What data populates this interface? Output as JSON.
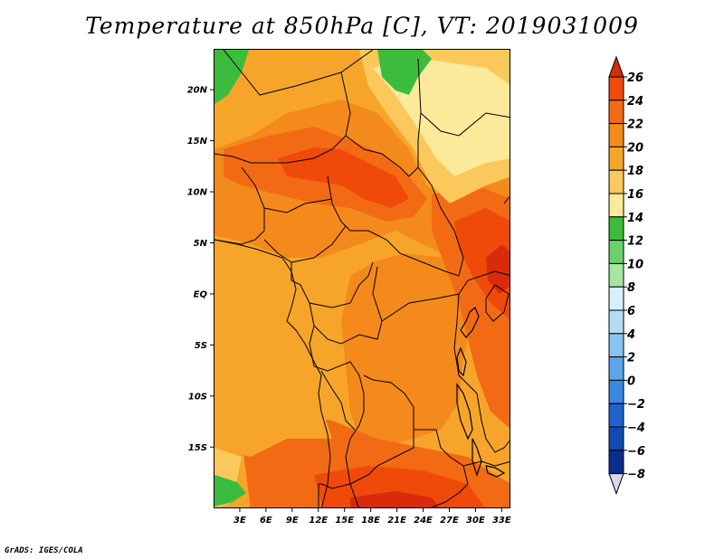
{
  "title": "Temperature at 850hPa [C], VT: 2019031009",
  "credit": "GrADS: IGES/COLA",
  "map": {
    "lat_range": [
      -21,
      24
    ],
    "lon_range": [
      0,
      34
    ],
    "lat_ticks": [
      {
        "value": 20,
        "label": "20N"
      },
      {
        "value": 15,
        "label": "15N"
      },
      {
        "value": 10,
        "label": "10N"
      },
      {
        "value": 5,
        "label": "5N"
      },
      {
        "value": 0,
        "label": "EQ"
      },
      {
        "value": -5,
        "label": "5S"
      },
      {
        "value": -10,
        "label": "10S"
      },
      {
        "value": -15,
        "label": "15S"
      }
    ],
    "lon_ticks": [
      {
        "value": 3,
        "label": "3E"
      },
      {
        "value": 6,
        "label": "6E"
      },
      {
        "value": 9,
        "label": "9E"
      },
      {
        "value": 12,
        "label": "12E"
      },
      {
        "value": 15,
        "label": "15E"
      },
      {
        "value": 18,
        "label": "18E"
      },
      {
        "value": 21,
        "label": "21E"
      },
      {
        "value": 24,
        "label": "24E"
      },
      {
        "value": 27,
        "label": "27E"
      },
      {
        "value": 30,
        "label": "30E"
      },
      {
        "value": 33,
        "label": "33E"
      }
    ]
  },
  "colorbar": {
    "levels": [
      26,
      24,
      22,
      20,
      18,
      16,
      14,
      12,
      10,
      8,
      6,
      4,
      2,
      0,
      -2,
      -4,
      -6,
      -8
    ],
    "labels": [
      "26",
      "24",
      "22",
      "20",
      "18",
      "16",
      "14",
      "12",
      "10",
      "8",
      "6",
      "4",
      "2",
      "0",
      "−2",
      "−4",
      "−6",
      "−8"
    ],
    "colors": [
      "#d92b0b",
      "#f04a0b",
      "#f26b14",
      "#f48a1b",
      "#f6a52a",
      "#fbc85c",
      "#fde99a",
      "#3cbc3c",
      "#6ad26a",
      "#a8e6a0",
      "#d6f1f9",
      "#b4dcf5",
      "#89c4f0",
      "#5aa6e8",
      "#3a88de",
      "#1e64cc",
      "#124ab4",
      "#0a2e8a"
    ],
    "top_arrow_color": "#d92b0b",
    "bottom_arrow_color": "#d8d8f0"
  },
  "field_colors": {
    "t14_16": "#fde99a",
    "t16_18": "#fbc85c",
    "t18_20": "#f6a52a",
    "t20_22": "#f48a1b",
    "t22_24": "#f26b14",
    "t24_26": "#f04a0b",
    "t26_up": "#d92b0b",
    "green": "#3cbc3c"
  }
}
